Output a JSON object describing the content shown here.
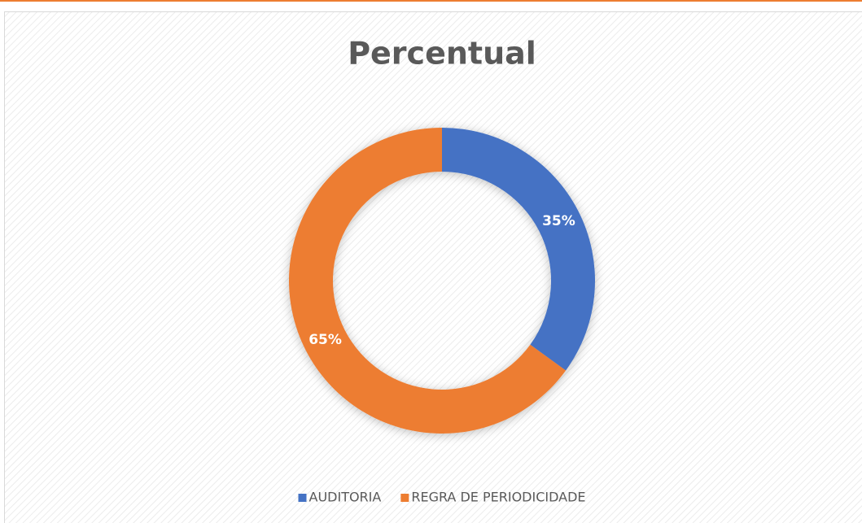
{
  "chart_data": {
    "type": "doughnut",
    "title": "Percentual",
    "categories": [
      "AUDITORIA",
      "REGRA DE PERIODICIDADE"
    ],
    "values": [
      35,
      65
    ],
    "value_labels": [
      "35%",
      "65%"
    ],
    "colors": [
      "#4472c4",
      "#ed7d31"
    ],
    "legend": "bottom"
  }
}
